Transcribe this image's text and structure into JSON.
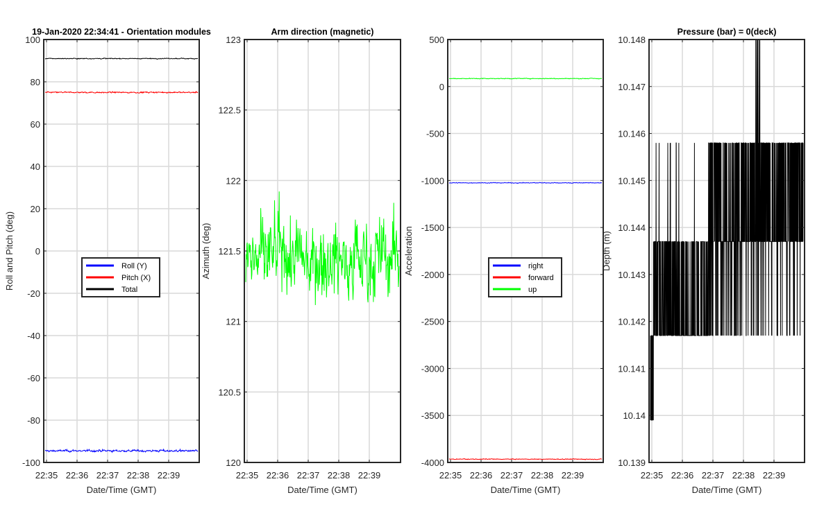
{
  "chart_data": [
    {
      "type": "line",
      "title": "19-Jan-2020 22:34:41 - Orientation modules",
      "xlabel": "Date/Time (GMT)",
      "ylabel": "Roll and Pitch (deg)",
      "ylim": [
        -100,
        100
      ],
      "yticks": [
        "-100",
        "-80",
        "-60",
        "-40",
        "-20",
        "0",
        "20",
        "40",
        "60",
        "80",
        "100"
      ],
      "xticks": [
        "22:35",
        "22:36",
        "22:37",
        "22:38",
        "22:39"
      ],
      "grid": true,
      "legend_position": "center",
      "series": [
        {
          "name": "Roll (Y)",
          "color": "#0000ff",
          "level": -94.5,
          "noise": 0.5
        },
        {
          "name": "Pitch (X)",
          "color": "#ff0000",
          "level": 75,
          "noise": 0.3
        },
        {
          "name": "Total",
          "color": "#000000",
          "level": 91,
          "noise": 0.2
        }
      ]
    },
    {
      "type": "line",
      "title": "Arm direction (magnetic)",
      "xlabel": "Date/Time (GMT)",
      "ylabel": "Azimuth (deg)",
      "ylim": [
        120,
        123
      ],
      "yticks": [
        "120",
        "120.5",
        "121",
        "121.5",
        "122",
        "122.5",
        "123"
      ],
      "xticks": [
        "22:35",
        "22:36",
        "22:37",
        "22:38",
        "22:39"
      ],
      "grid": true,
      "series": [
        {
          "color": "#00ff00",
          "level": 121.45,
          "noise": 0.28
        }
      ]
    },
    {
      "type": "line",
      "title": "",
      "xlabel": "Date/Time (GMT)",
      "ylabel": "Acceleration",
      "ylim": [
        -4000,
        500
      ],
      "yticks": [
        "-4000",
        "-3500",
        "-3000",
        "-2500",
        "-2000",
        "-1500",
        "-1000",
        "-500",
        "0",
        "500"
      ],
      "xticks": [
        "22:35",
        "22:36",
        "22:37",
        "22:38",
        "22:39"
      ],
      "grid": true,
      "legend_position": "center",
      "series": [
        {
          "name": "right",
          "color": "#0000ff",
          "level": -1025,
          "noise": 4
        },
        {
          "name": "forward",
          "color": "#ff0000",
          "level": -3965,
          "noise": 4
        },
        {
          "name": "up",
          "color": "#00ff00",
          "level": 85,
          "noise": 4
        }
      ]
    },
    {
      "type": "line",
      "title": "Pressure (bar) = 0(deck)",
      "xlabel": "Date/Time (GMT)",
      "ylabel": "Depth (m)",
      "ylim": [
        10.139,
        10.148
      ],
      "yticks": [
        "10.139",
        "10.14",
        "10.141",
        "10.142",
        "10.143",
        "10.144",
        "10.145",
        "10.146",
        "10.147",
        "10.148"
      ],
      "xticks": [
        "22:35",
        "22:36",
        "22:37",
        "22:38",
        "22:39"
      ],
      "grid": true,
      "series": [
        {
          "color": "#000000",
          "levels": [
            10.1417,
            10.1437,
            10.1458
          ]
        }
      ]
    }
  ]
}
